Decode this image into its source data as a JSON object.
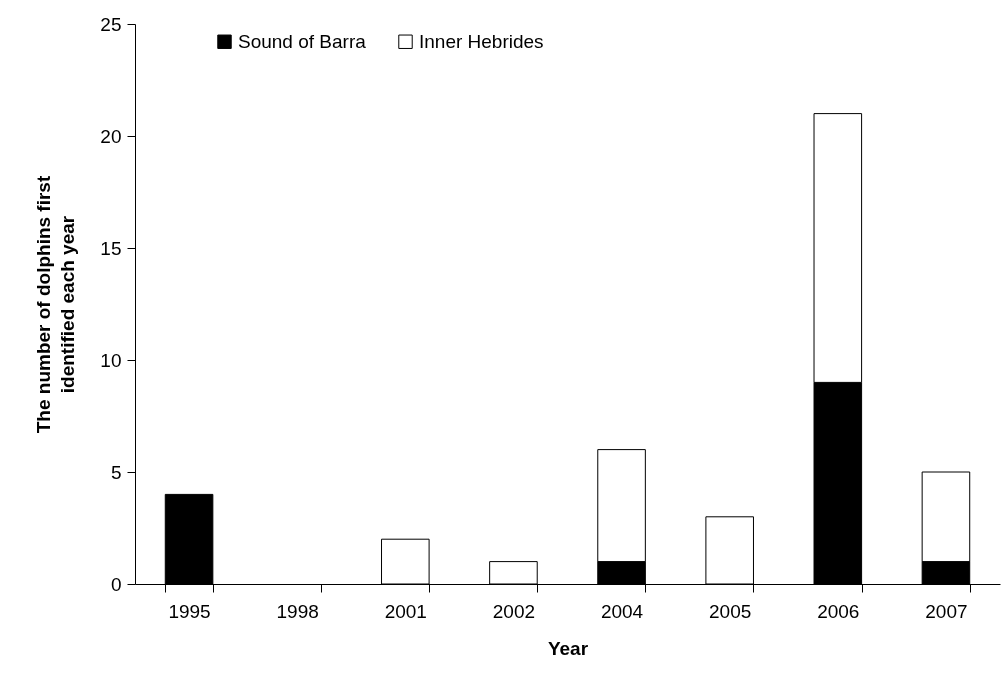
{
  "chart_data": {
    "type": "bar",
    "stacked": true,
    "xlabel": "Year",
    "ylabel": "The number of dolphins first identified each year",
    "categories": [
      "1995",
      "1998",
      "2001",
      "2002",
      "2004",
      "2005",
      "2006",
      "2007"
    ],
    "series": [
      {
        "name": "Sound of Barra",
        "color": "#000000",
        "values": [
          4,
          0,
          0,
          0,
          1,
          0,
          9,
          1
        ]
      },
      {
        "name": "Inner Hebrides",
        "color": "#ffffff",
        "values": [
          0,
          0,
          2,
          1,
          5,
          3,
          12,
          4
        ]
      }
    ],
    "ylim": [
      0,
      25
    ],
    "yticks": [
      0,
      5,
      10,
      15,
      20,
      25
    ],
    "grid": false,
    "legend": "top left"
  }
}
